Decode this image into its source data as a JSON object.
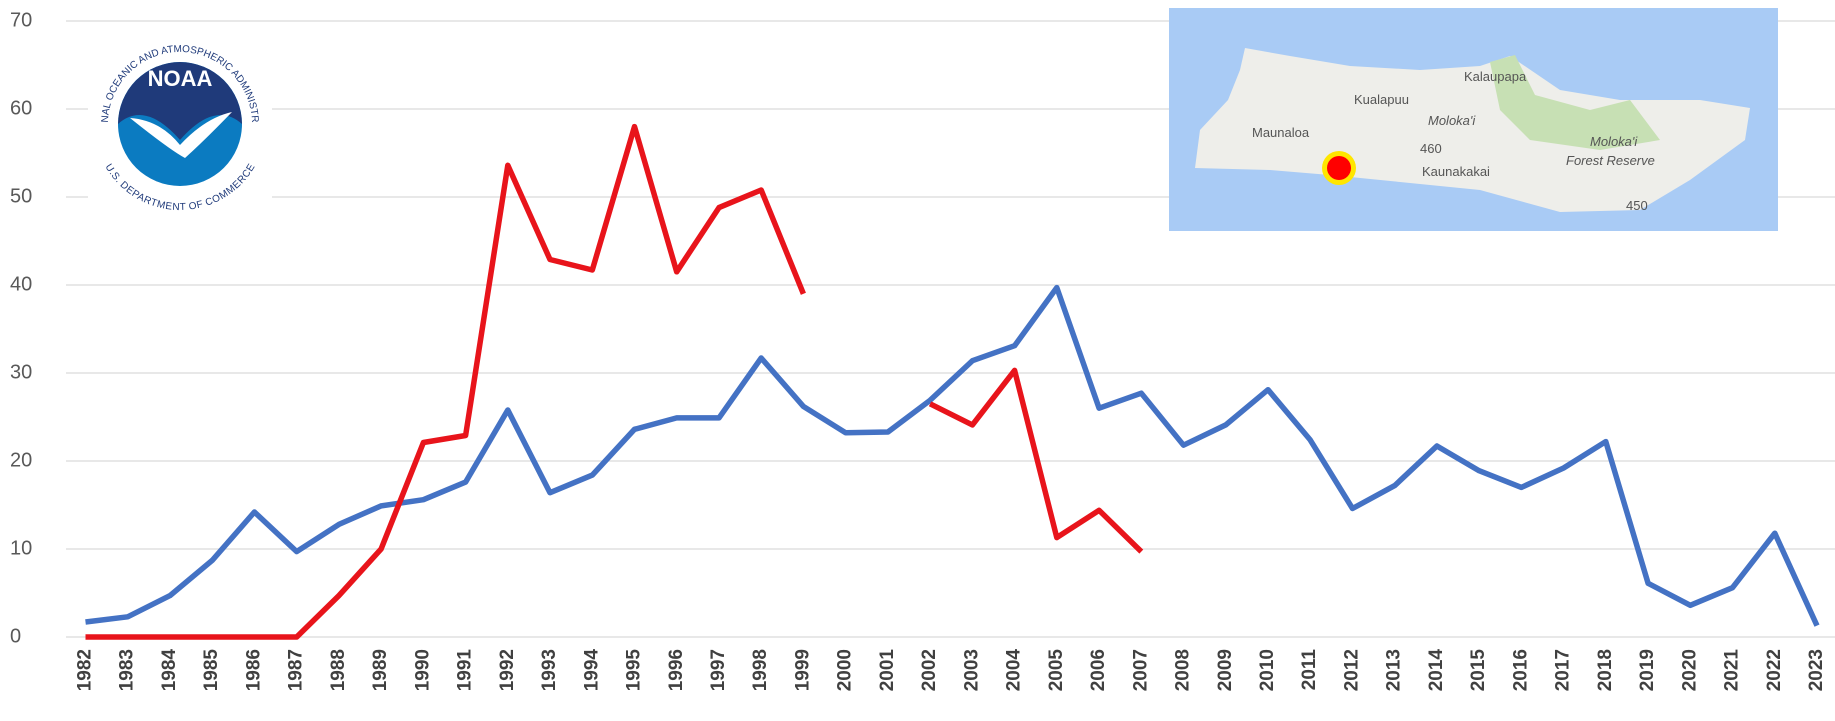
{
  "chart_data": {
    "type": "line",
    "categories": [
      "1982",
      "1983",
      "1984",
      "1985",
      "1986",
      "1987",
      "1988",
      "1989",
      "1990",
      "1991",
      "1992",
      "1993",
      "1994",
      "1995",
      "1996",
      "1997",
      "1998",
      "1999",
      "2000",
      "2001",
      "2002",
      "2003",
      "2004",
      "2005",
      "2006",
      "2007",
      "2008",
      "2009",
      "2010",
      "2011",
      "2012",
      "2013",
      "2014",
      "2015",
      "2016",
      "2017",
      "2018",
      "2019",
      "2020",
      "2021",
      "2022",
      "2023"
    ],
    "series": [
      {
        "color": "#4472c4",
        "values": [
          1.7,
          2.3,
          4.7,
          8.7,
          14.2,
          9.7,
          12.8,
          14.9,
          15.6,
          17.6,
          25.8,
          16.4,
          18.4,
          23.6,
          24.9,
          24.9,
          31.7,
          26.2,
          23.2,
          23.3,
          26.9,
          31.4,
          33.1,
          39.7,
          26.0,
          27.7,
          21.8,
          24.1,
          28.1,
          22.4,
          14.6,
          17.2,
          21.7,
          18.9,
          17.0,
          19.2,
          22.2,
          6.1,
          3.6,
          5.6,
          11.8,
          1.3
        ]
      },
      {
        "color": "#e8141b",
        "values": [
          0,
          0,
          0,
          0,
          0,
          0,
          4.7,
          10.0,
          22.1,
          22.9,
          53.6,
          42.9,
          41.7,
          58.0,
          41.5,
          48.8,
          50.8,
          39.0,
          null,
          null,
          26.5,
          24.1,
          30.3,
          11.3,
          14.4,
          9.7,
          null,
          null,
          null,
          null,
          null,
          null,
          null,
          null,
          null,
          null,
          null,
          null,
          null,
          null,
          null,
          null
        ]
      }
    ],
    "ylim": [
      0,
      70
    ],
    "yticks": [
      0,
      10,
      20,
      30,
      40,
      50,
      60,
      70
    ],
    "grid": true
  },
  "logo": {
    "name": "NOAA",
    "top_text": "NATIONAL OCEANIC AND ATMOSPHERIC ADMINISTRATION",
    "bottom_text": "U.S. DEPARTMENT OF COMMERCE"
  },
  "map": {
    "labels": [
      "Kalaupapa",
      "Kualapuu",
      "Maunaloa",
      "Moloka'i",
      "460",
      "Kaunakakai",
      "Moloka'i",
      "Forest Reserve",
      "450"
    ]
  }
}
